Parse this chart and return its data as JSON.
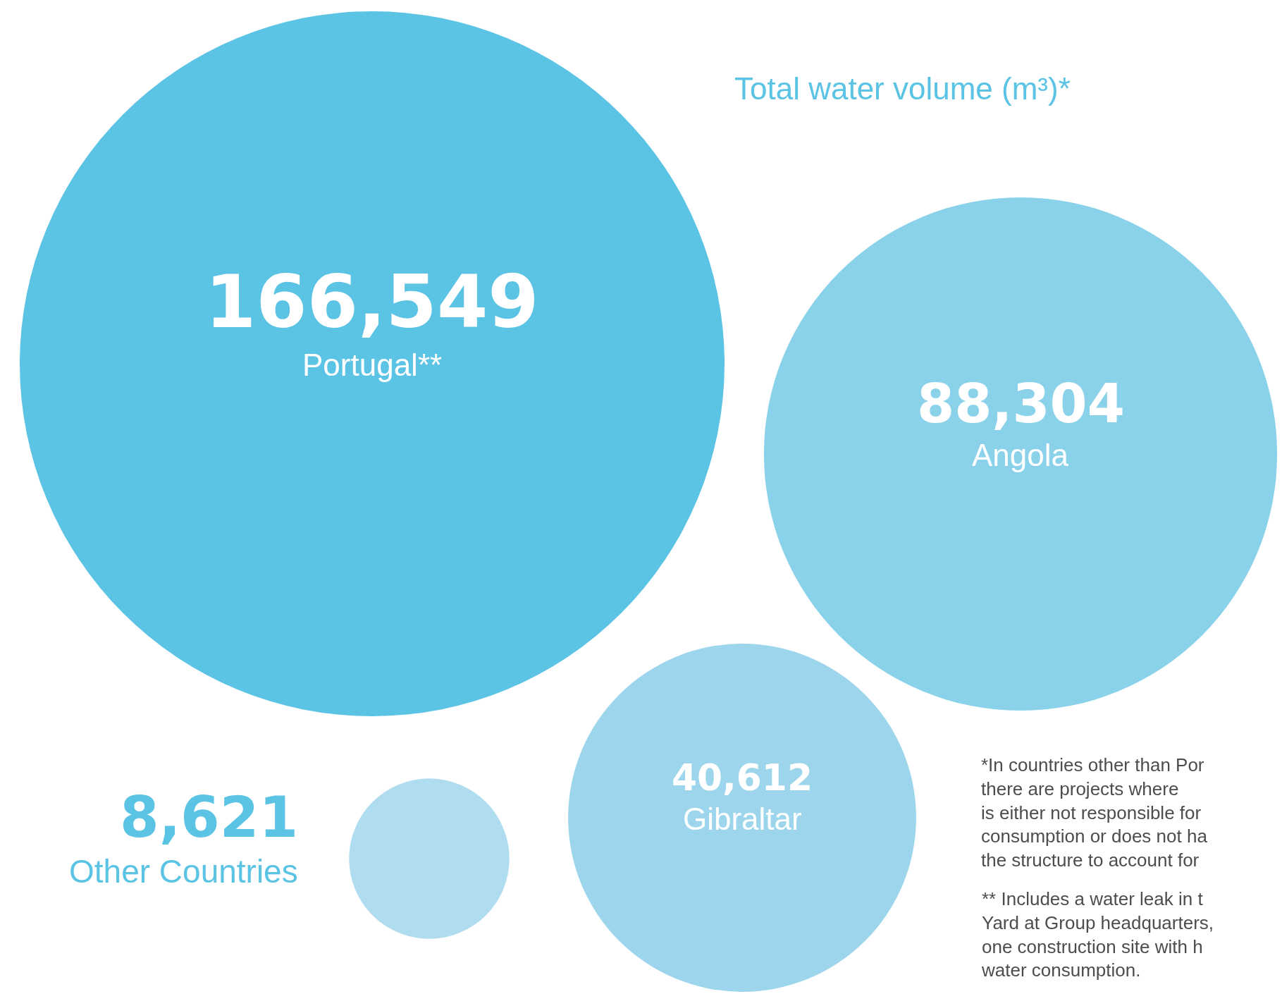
{
  "chart_data": {
    "type": "other",
    "title": "Total water volume (m³)*",
    "categories": [
      "Portugal**",
      "Angola",
      "Gibraltar",
      "Other Countries"
    ],
    "values": [
      166549,
      88304,
      40612,
      8621
    ],
    "value_labels": [
      "166,549",
      "88,304",
      "40,612",
      "8,621"
    ],
    "colors": [
      "#5bc3e3",
      "#8ad1ea",
      "#9dd6ec",
      "#afdcef"
    ],
    "annotations": [
      "*In countries other than Por\nthere are projects where\nis either not responsible for\nconsumption or does not ha\nthe structure to account for",
      "** Includes a water leak in t\nYard at Group headquarters,\none construction site with h\nwater consumption."
    ]
  }
}
